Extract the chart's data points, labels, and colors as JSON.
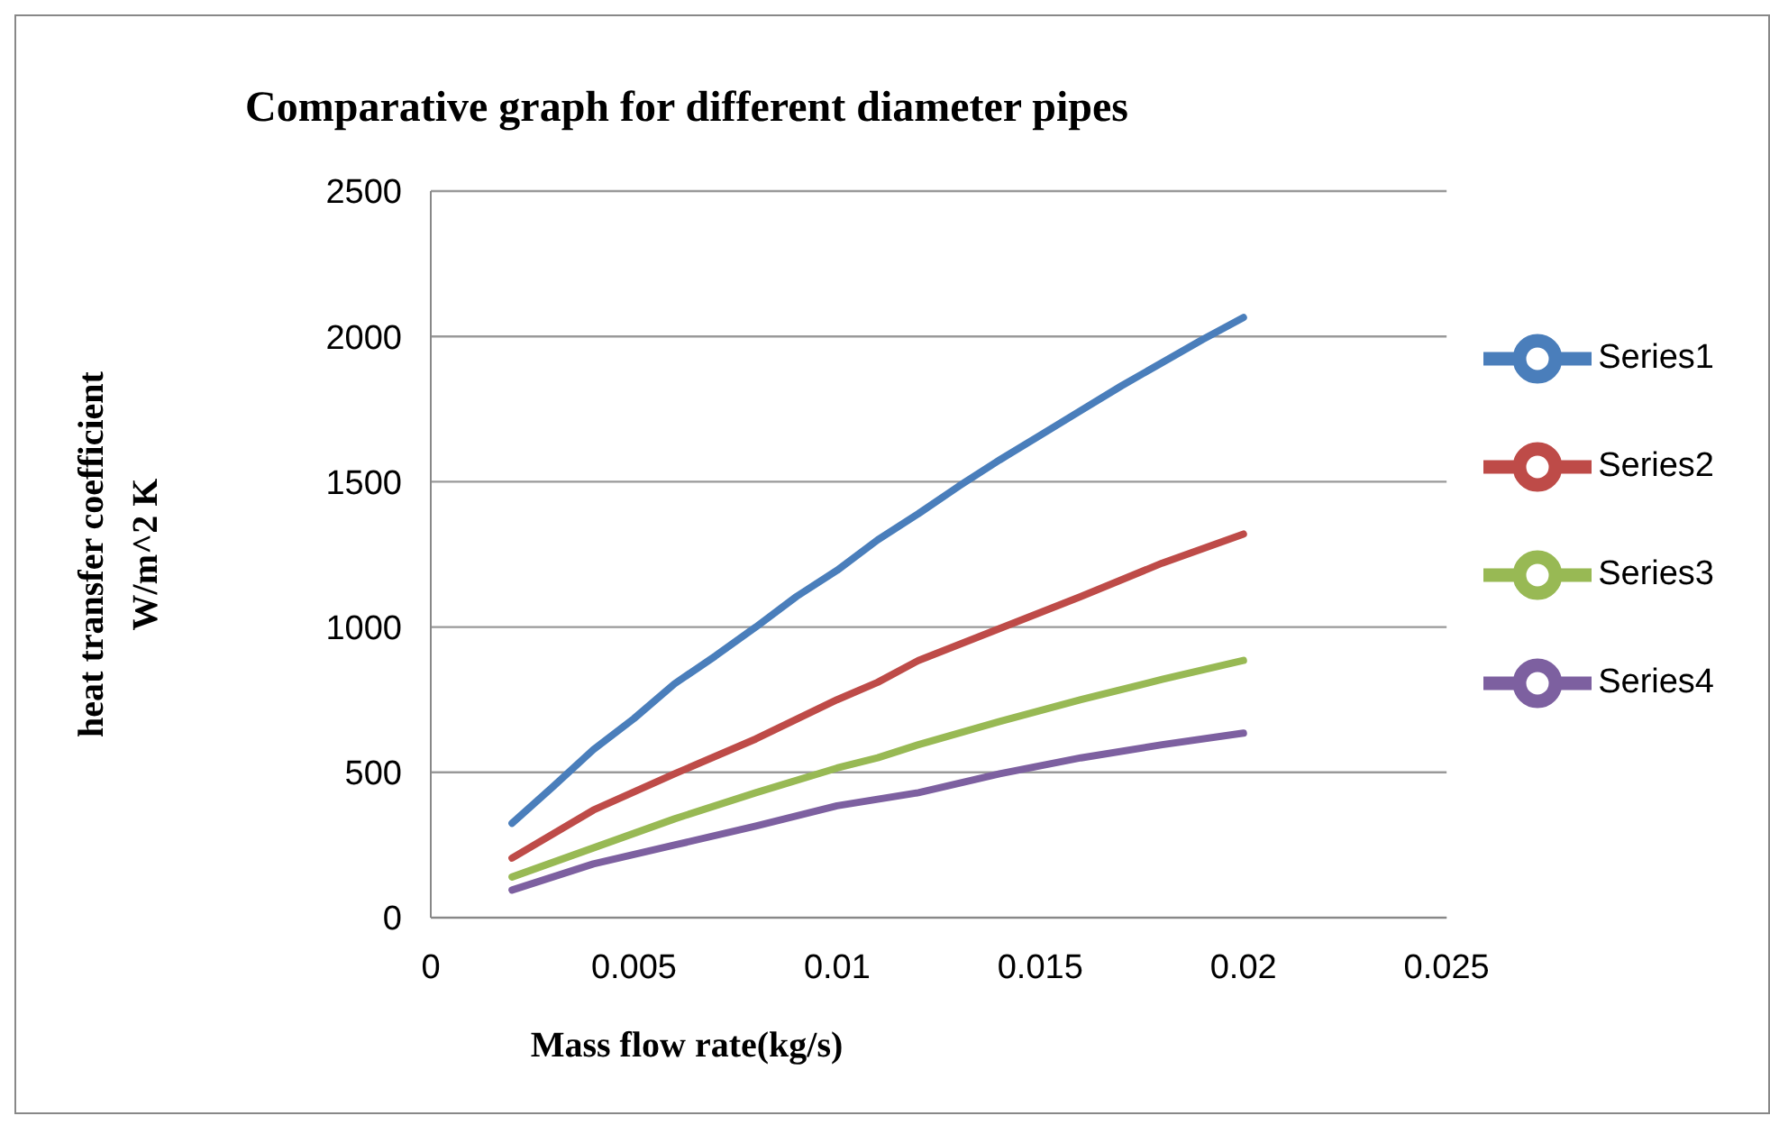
{
  "chart_data": {
    "type": "line",
    "title": "Comparative graph for different diameter pipes",
    "xlabel": "Mass flow rate(kg/s)",
    "ylabel": "heat transfer coefficient\nW/m^2 K",
    "xlim": [
      0,
      0.025
    ],
    "xticks": [
      0,
      0.005,
      0.01,
      0.015,
      0.02,
      0.025
    ],
    "ylim": [
      0,
      2500
    ],
    "yticks": [
      0,
      500,
      1000,
      1500,
      2000,
      2500
    ],
    "grid": "y",
    "legend": "right",
    "marker": "none",
    "line_style": "solid",
    "series": [
      {
        "name": "Series1",
        "color": "#4a7ebb",
        "x": [
          0.002,
          0.003,
          0.004,
          0.005,
          0.006,
          0.007,
          0.008,
          0.009,
          0.01,
          0.011,
          0.012,
          0.013,
          0.014,
          0.015,
          0.016,
          0.017,
          0.018,
          0.019,
          0.02
        ],
        "values": [
          325,
          450,
          578,
          685,
          805,
          900,
          1000,
          1105,
          1195,
          1300,
          1390,
          1485,
          1575,
          1660,
          1745,
          1830,
          1910,
          1990,
          2065
        ]
      },
      {
        "name": "Series2",
        "color": "#be4b48",
        "x": [
          0.002,
          0.004,
          0.006,
          0.008,
          0.01,
          0.011,
          0.012,
          0.014,
          0.016,
          0.018,
          0.02
        ],
        "values": [
          205,
          370,
          495,
          615,
          750,
          810,
          885,
          995,
          1105,
          1220,
          1320
        ]
      },
      {
        "name": "Series3",
        "color": "#98b954",
        "x": [
          0.002,
          0.004,
          0.006,
          0.008,
          0.01,
          0.011,
          0.012,
          0.014,
          0.016,
          0.018,
          0.02
        ],
        "values": [
          140,
          240,
          340,
          430,
          515,
          550,
          595,
          675,
          750,
          820,
          885
        ]
      },
      {
        "name": "Series4",
        "color": "#7d60a0",
        "x": [
          0.002,
          0.004,
          0.006,
          0.008,
          0.01,
          0.012,
          0.014,
          0.016,
          0.018,
          0.02
        ],
        "values": [
          95,
          185,
          250,
          315,
          385,
          430,
          495,
          550,
          595,
          635
        ]
      }
    ]
  }
}
